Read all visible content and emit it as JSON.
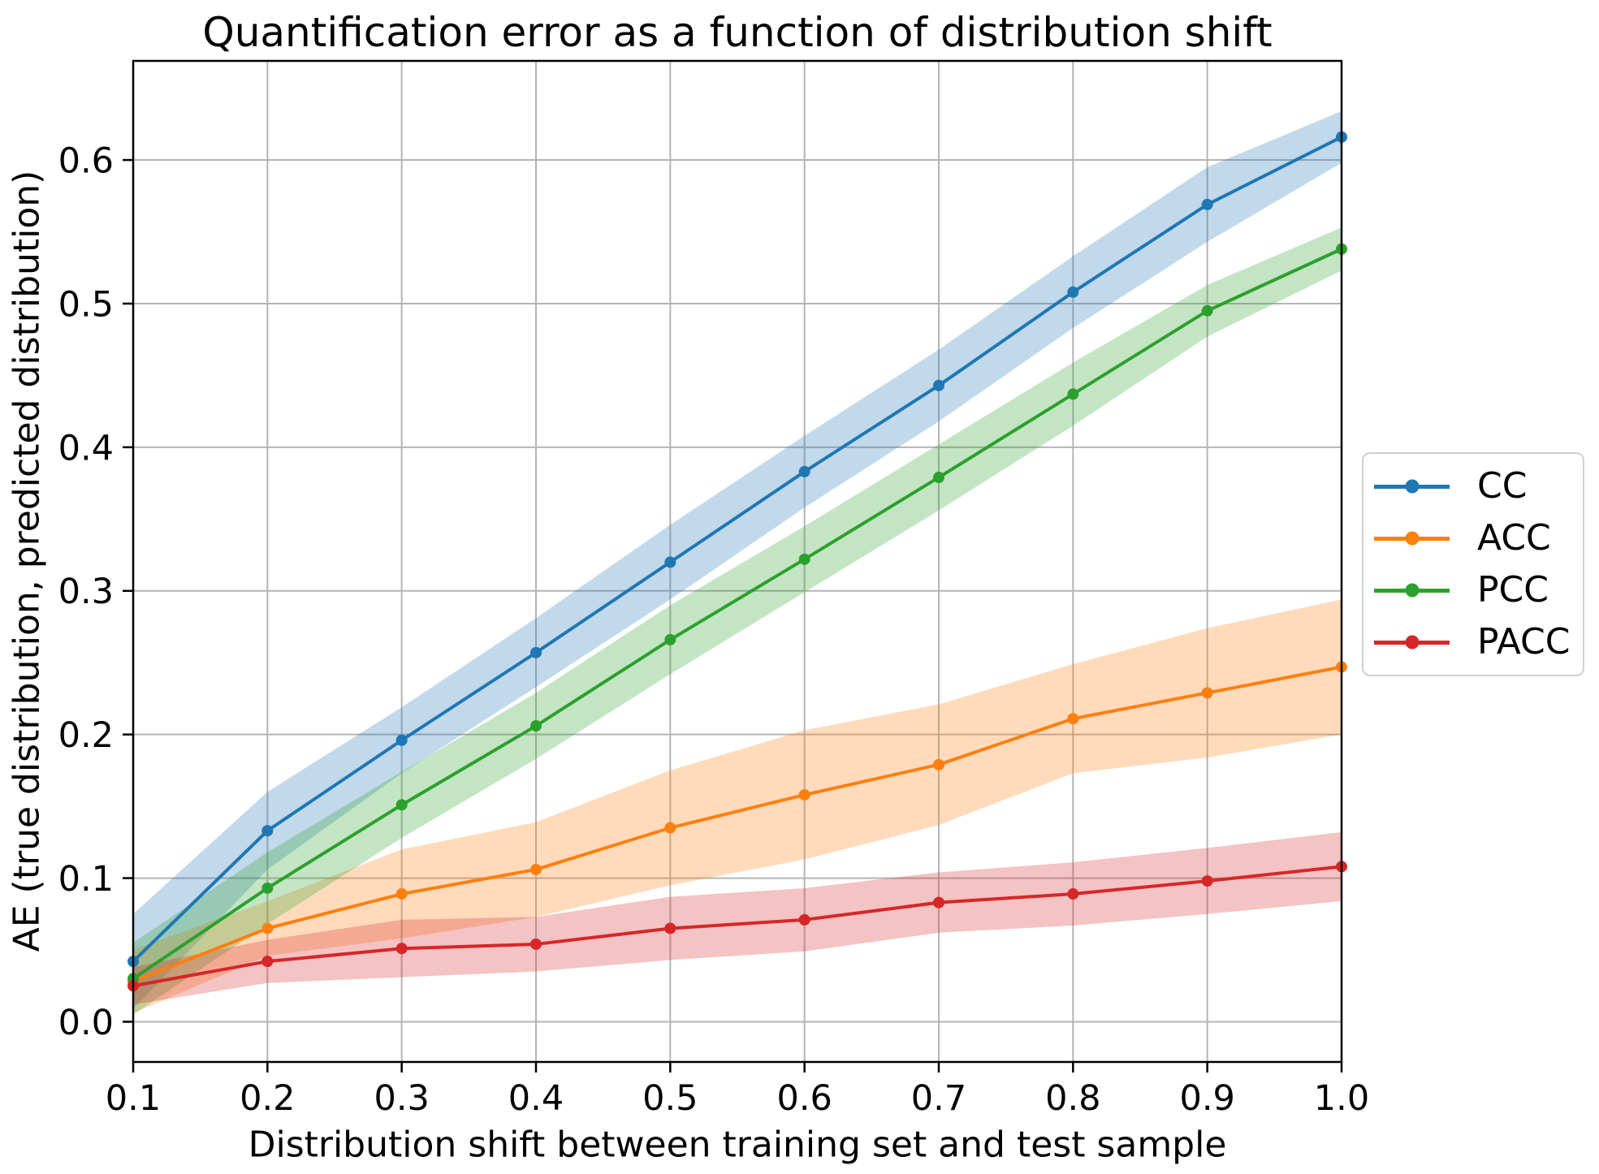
{
  "chart_data": {
    "type": "line",
    "title": "Quantification error as a function of distribution shift",
    "xlabel": "Distribution shift between training set and test sample",
    "ylabel": "AE (true distribution, predicted distribution)",
    "grid": true,
    "grid_color": "#b4b4b4",
    "background_color": "#ffffff",
    "band_opacity": 0.28,
    "legend_position": "outside-right",
    "xlim": [
      0.1,
      1.0
    ],
    "ylim": [
      -0.028,
      0.669
    ],
    "xtick_values": [
      0.1,
      0.2,
      0.3,
      0.4,
      0.5,
      0.6,
      0.7,
      0.8,
      0.9,
      1.0
    ],
    "xtick_labels": [
      "0.1",
      "0.2",
      "0.3",
      "0.4",
      "0.5",
      "0.6",
      "0.7",
      "0.8",
      "0.9",
      "1.0"
    ],
    "ytick_values": [
      0.0,
      0.1,
      0.2,
      0.3,
      0.4,
      0.5,
      0.6
    ],
    "ytick_labels": [
      "0.0",
      "0.1",
      "0.2",
      "0.3",
      "0.4",
      "0.5",
      "0.6"
    ],
    "x": [
      0.1,
      0.2,
      0.3,
      0.4,
      0.5,
      0.6,
      0.7,
      0.8,
      0.9,
      1.0
    ],
    "series": [
      {
        "name": "CC",
        "color": "#1f77b4",
        "values": [
          0.042,
          0.133,
          0.196,
          0.257,
          0.32,
          0.383,
          0.443,
          0.508,
          0.569,
          0.616
        ],
        "band_upper": [
          0.075,
          0.16,
          0.219,
          0.281,
          0.346,
          0.408,
          0.468,
          0.533,
          0.595,
          0.634
        ],
        "band_lower": [
          0.009,
          0.106,
          0.173,
          0.233,
          0.294,
          0.358,
          0.418,
          0.483,
          0.543,
          0.598
        ]
      },
      {
        "name": "ACC",
        "color": "#ff7f0e",
        "values": [
          0.028,
          0.065,
          0.089,
          0.106,
          0.135,
          0.158,
          0.179,
          0.211,
          0.229,
          0.247
        ],
        "band_upper": [
          0.05,
          0.084,
          0.12,
          0.139,
          0.175,
          0.203,
          0.221,
          0.249,
          0.274,
          0.294
        ],
        "band_lower": [
          0.006,
          0.046,
          0.058,
          0.073,
          0.095,
          0.113,
          0.137,
          0.173,
          0.184,
          0.2
        ]
      },
      {
        "name": "PCC",
        "color": "#2ca02c",
        "values": [
          0.03,
          0.093,
          0.151,
          0.206,
          0.266,
          0.322,
          0.379,
          0.437,
          0.495,
          0.538
        ],
        "band_upper": [
          0.055,
          0.118,
          0.174,
          0.229,
          0.29,
          0.345,
          0.402,
          0.459,
          0.513,
          0.553
        ],
        "band_lower": [
          0.005,
          0.068,
          0.128,
          0.183,
          0.242,
          0.299,
          0.356,
          0.415,
          0.477,
          0.523
        ]
      },
      {
        "name": "PACC",
        "color": "#d62728",
        "values": [
          0.025,
          0.042,
          0.051,
          0.054,
          0.065,
          0.071,
          0.083,
          0.089,
          0.098,
          0.108
        ],
        "band_upper": [
          0.038,
          0.057,
          0.071,
          0.073,
          0.087,
          0.093,
          0.104,
          0.111,
          0.121,
          0.132
        ],
        "band_lower": [
          0.012,
          0.027,
          0.031,
          0.035,
          0.043,
          0.049,
          0.062,
          0.067,
          0.075,
          0.084
        ]
      }
    ]
  }
}
